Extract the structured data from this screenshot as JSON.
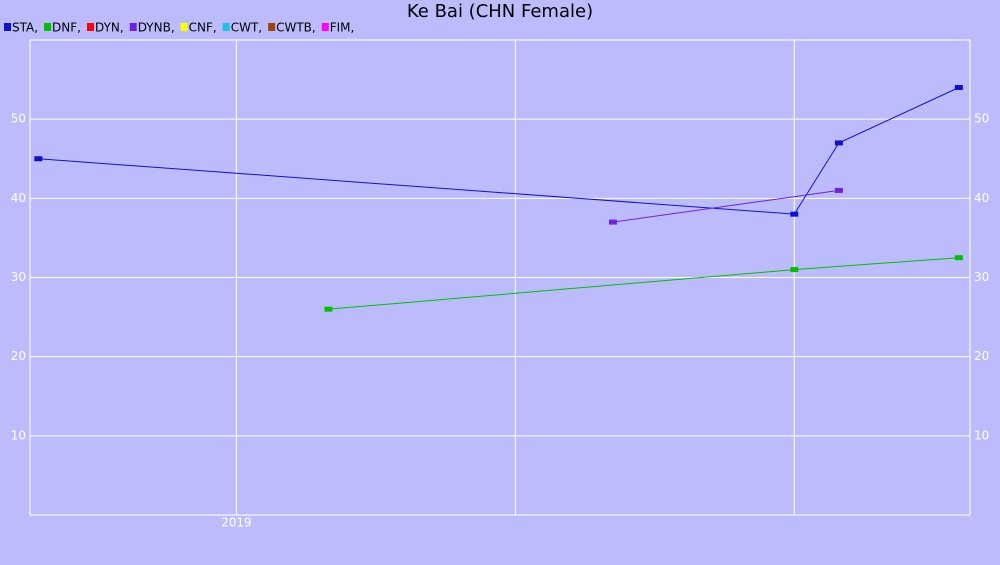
{
  "chart_data": {
    "type": "line",
    "title": "Ke Bai (CHN Female)",
    "xlim": [
      2018.26,
      2021.63
    ],
    "xticks": [
      2019
    ],
    "xgrid": [
      2020,
      2021
    ],
    "ylim": [
      0,
      60
    ],
    "yticks": [
      10,
      20,
      30,
      40,
      50
    ],
    "grid": true,
    "series": [
      {
        "name": "STA,",
        "color": "#1010d0",
        "x": [
          2018.29,
          2021.0,
          2021.16,
          2021.59
        ],
        "values": [
          45,
          38,
          47,
          54
        ]
      },
      {
        "name": "DNF,",
        "color": "#00c000",
        "x": [
          2019.33,
          2021.0,
          2021.59
        ],
        "values": [
          26,
          31,
          32.5
        ]
      },
      {
        "name": "DYN,",
        "color": "#ff0000",
        "x": [],
        "values": []
      },
      {
        "name": "DYNB,",
        "color": "#7020e0",
        "x": [
          2020.35,
          2021.16
        ],
        "values": [
          37,
          41
        ]
      },
      {
        "name": "CNF,",
        "color": "#ffff00",
        "x": [],
        "values": []
      },
      {
        "name": "CWT,",
        "color": "#20c0e0",
        "x": [],
        "values": []
      },
      {
        "name": "CWTB,",
        "color": "#a04010",
        "x": [],
        "values": []
      },
      {
        "name": "FIM,",
        "color": "#ff00ff",
        "x": [],
        "values": []
      }
    ]
  }
}
